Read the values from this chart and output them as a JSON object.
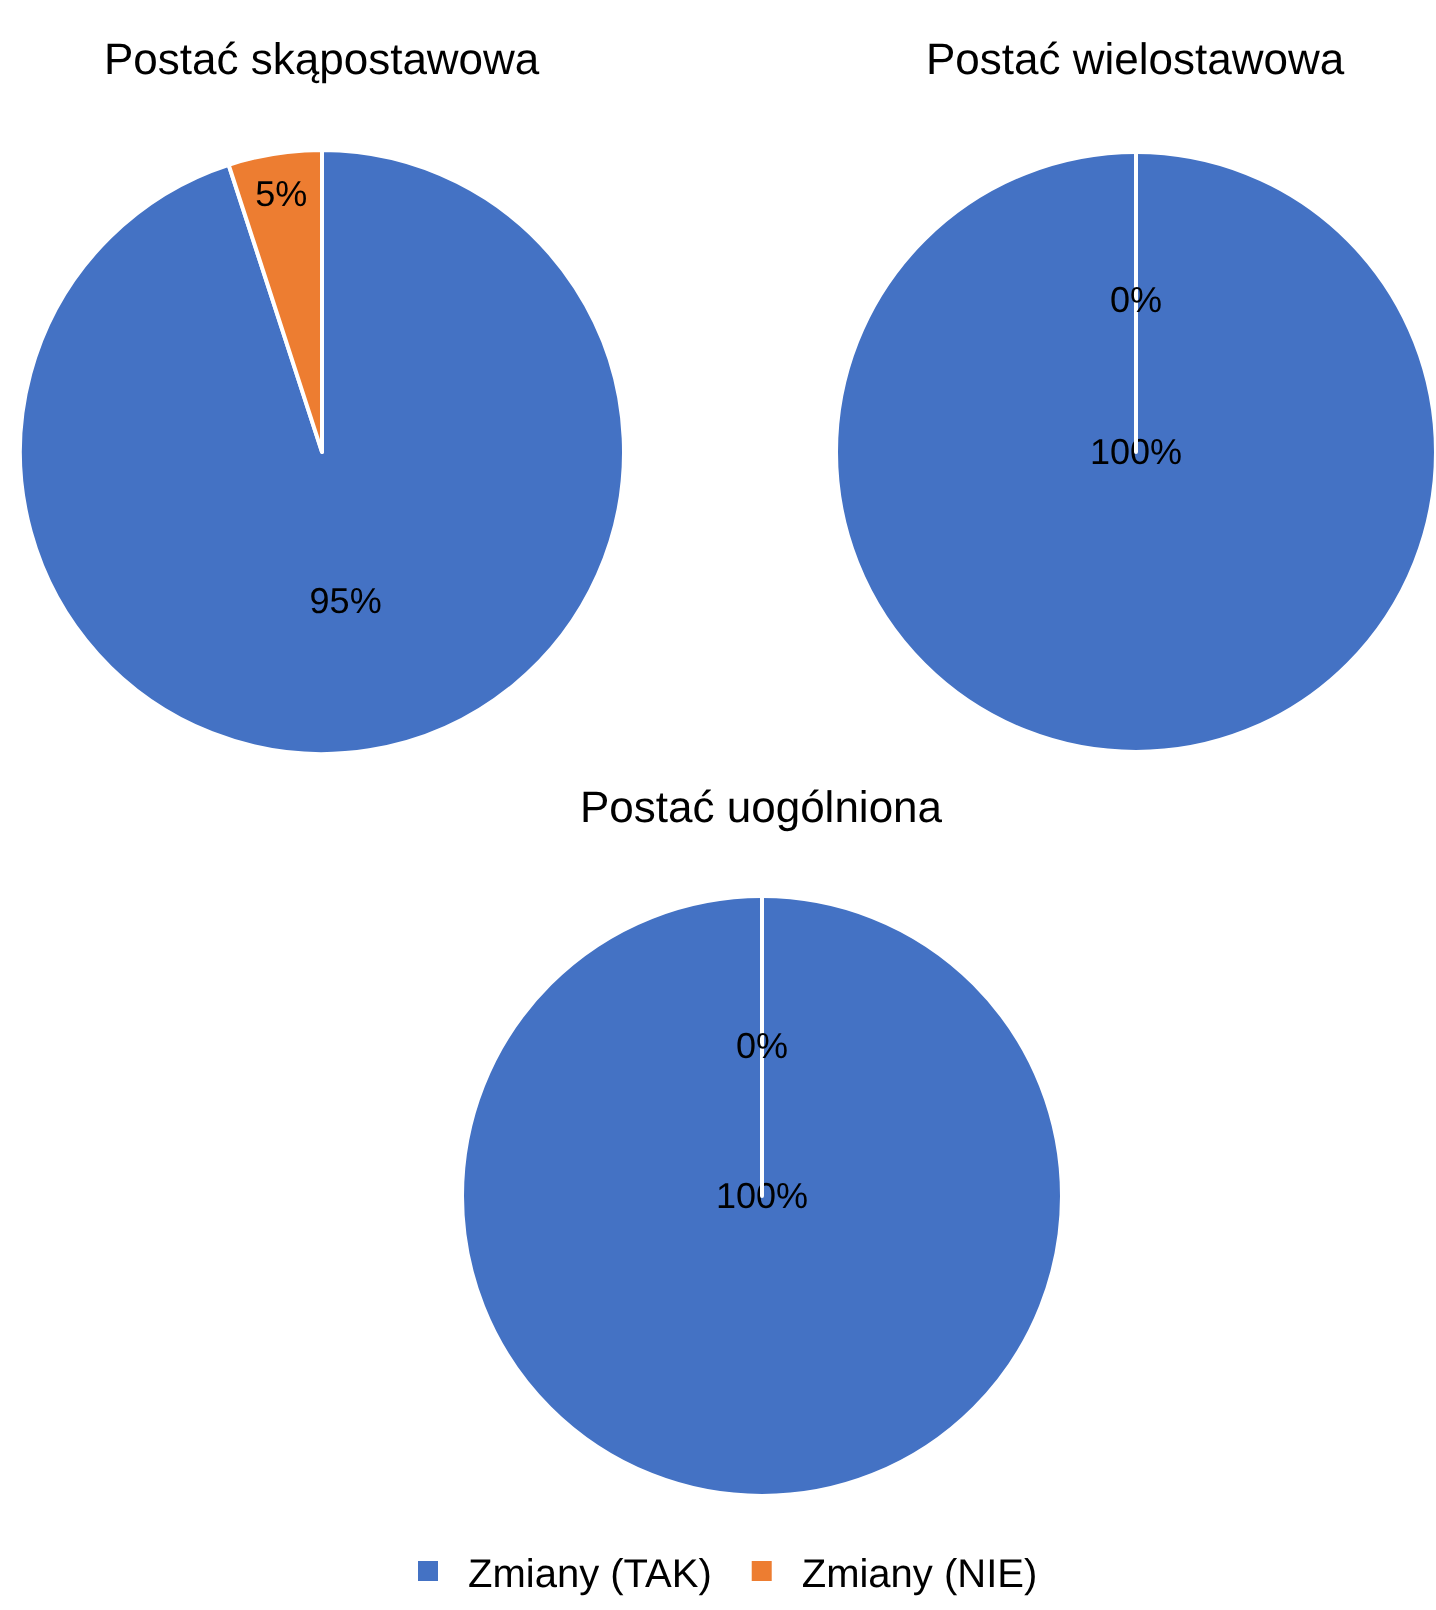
{
  "chart_data": [
    {
      "type": "pie",
      "title": "Postać skąpostawowa",
      "categories": [
        "Zmiany (TAK)",
        "Zmiany (NIE)"
      ],
      "values": [
        95,
        5
      ],
      "value_labels": [
        "95%",
        "5%"
      ],
      "colors": [
        "#4472c4",
        "#ed7d31"
      ],
      "legend": "bottom"
    },
    {
      "type": "pie",
      "title": "Postać wielostawowa",
      "categories": [
        null,
        null
      ],
      "values": [
        100,
        0
      ],
      "value_labels": [
        "100%",
        "0%"
      ],
      "colors": [
        "#4472c4",
        "#ed7d31"
      ]
    },
    {
      "type": "pie",
      "title": "Postać uogólniona",
      "categories": [
        null,
        null
      ],
      "values": [
        100,
        0
      ],
      "value_labels": [
        "100%",
        "0%"
      ],
      "colors": [
        "#4472c4",
        "#ed7d31"
      ]
    }
  ]
}
